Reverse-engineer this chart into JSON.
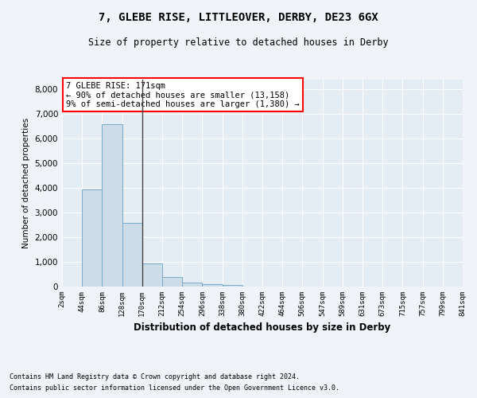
{
  "title1": "7, GLEBE RISE, LITTLEOVER, DERBY, DE23 6GX",
  "title2": "Size of property relative to detached houses in Derby",
  "xlabel": "Distribution of detached houses by size in Derby",
  "ylabel": "Number of detached properties",
  "bin_labels": [
    "2sqm",
    "44sqm",
    "86sqm",
    "128sqm",
    "170sqm",
    "212sqm",
    "254sqm",
    "296sqm",
    "338sqm",
    "380sqm",
    "422sqm",
    "464sqm",
    "506sqm",
    "547sqm",
    "589sqm",
    "631sqm",
    "673sqm",
    "715sqm",
    "757sqm",
    "799sqm",
    "841sqm"
  ],
  "bar_values": [
    0,
    3950,
    6600,
    2600,
    950,
    400,
    150,
    100,
    50,
    0,
    0,
    0,
    0,
    0,
    0,
    0,
    0,
    0,
    0,
    0
  ],
  "bar_color": "#ccdde8",
  "bar_edgecolor": "#7aaac8",
  "vline_bin_index": 4,
  "vline_color": "#444444",
  "ylim": [
    0,
    8400
  ],
  "yticks": [
    0,
    1000,
    2000,
    3000,
    4000,
    5000,
    6000,
    7000,
    8000
  ],
  "annotation_text": "7 GLEBE RISE: 171sqm\n← 90% of detached houses are smaller (13,158)\n9% of semi-detached houses are larger (1,380) →",
  "footer1": "Contains HM Land Registry data © Crown copyright and database right 2024.",
  "footer2": "Contains public sector information licensed under the Open Government Licence v3.0.",
  "bg_color": "#f0f4f8",
  "plot_bg_color": "#e4ecf4"
}
